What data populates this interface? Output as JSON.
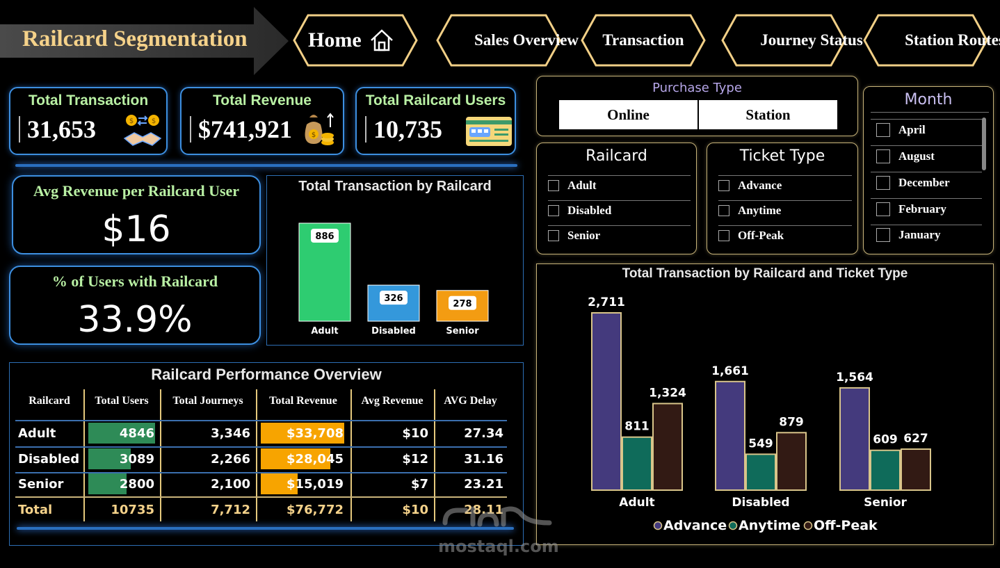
{
  "title": "Railcard Segmentation",
  "nav": [
    {
      "label": "Home"
    },
    {
      "label": "Sales Overview"
    },
    {
      "label": "Transaction"
    },
    {
      "label": "Journey Status"
    },
    {
      "label": "Station Routes"
    }
  ],
  "kpis": {
    "total_transaction": {
      "label": "Total Transaction",
      "value": "31,653"
    },
    "total_revenue": {
      "label": "Total Revenue",
      "value": "$741,921"
    },
    "total_users": {
      "label": "Total Railcard Users",
      "value": "10,735"
    },
    "avg_revenue": {
      "label": "Avg Revenue per Railcard User",
      "value": "$16"
    },
    "pct_users": {
      "label": "% of Users with Railcard",
      "value": "33.9%"
    }
  },
  "purchase_type": {
    "title": "Purchase Type",
    "options": [
      "Online",
      "Station"
    ]
  },
  "railcard_slicer": {
    "title": "Railcard",
    "items": [
      "Adult",
      "Disabled",
      "Senior"
    ]
  },
  "ticket_slicer": {
    "title": "Ticket Type",
    "items": [
      "Advance",
      "Anytime",
      "Off-Peak"
    ]
  },
  "month_slicer": {
    "title": "Month",
    "items": [
      "April",
      "August",
      "December",
      "February",
      "January"
    ]
  },
  "colors": {
    "accent": "#3d8fe0",
    "gold": "#e5c97d",
    "green": "#2ecc71",
    "blue": "#3498db",
    "orange": "#f39c12",
    "advance": "#443a7d",
    "anytime": "#0f6b5a",
    "offpeak": "#321a14"
  },
  "chart_data": [
    {
      "type": "bar",
      "title": "Total Transaction by Railcard",
      "categories": [
        "Adult",
        "Disabled",
        "Senior"
      ],
      "values": [
        886,
        326,
        278
      ],
      "ylim": [
        0,
        886
      ]
    },
    {
      "type": "bar",
      "title": "Total Transaction by Railcard and Ticket Type",
      "categories": [
        "Adult",
        "Disabled",
        "Senior"
      ],
      "series": [
        {
          "name": "Advance",
          "values": [
            2711,
            1661,
            1564
          ]
        },
        {
          "name": "Anytime",
          "values": [
            811,
            549,
            609
          ]
        },
        {
          "name": "Off-Peak",
          "values": [
            1324,
            879,
            627
          ]
        }
      ],
      "value_labels": [
        [
          "2,711",
          "811",
          "1,324"
        ],
        [
          "1,661",
          "549",
          "879"
        ],
        [
          "1,564",
          "609",
          "627"
        ]
      ],
      "legend": "bottom",
      "ylim": [
        0,
        2711
      ]
    }
  ],
  "table": {
    "title": "Railcard Performance Overview",
    "columns": [
      "Railcard",
      "Total Users",
      "Total Journeys",
      "Total Revenue",
      "Avg Revenue",
      "AVG Delay"
    ],
    "rows": [
      {
        "railcard": "Adult",
        "users": "4846",
        "users_num": 4846,
        "journeys": "3,346",
        "revenue": "$33,708",
        "revenue_num": 33708,
        "avg": "$10",
        "delay": "27.34"
      },
      {
        "railcard": "Disabled",
        "users": "3089",
        "users_num": 3089,
        "journeys": "2,266",
        "revenue": "$28,045",
        "revenue_num": 28045,
        "avg": "$12",
        "delay": "31.16"
      },
      {
        "railcard": "Senior",
        "users": "2800",
        "users_num": 2800,
        "journeys": "2,100",
        "revenue": "$15,019",
        "revenue_num": 15019,
        "avg": "$7",
        "delay": "23.21"
      }
    ],
    "total": {
      "railcard": "Total",
      "users": "10735",
      "journeys": "7,712",
      "revenue": "$76,772",
      "avg": "$10",
      "delay": "28.11"
    }
  },
  "watermark": {
    "text": "mostaql.com"
  }
}
